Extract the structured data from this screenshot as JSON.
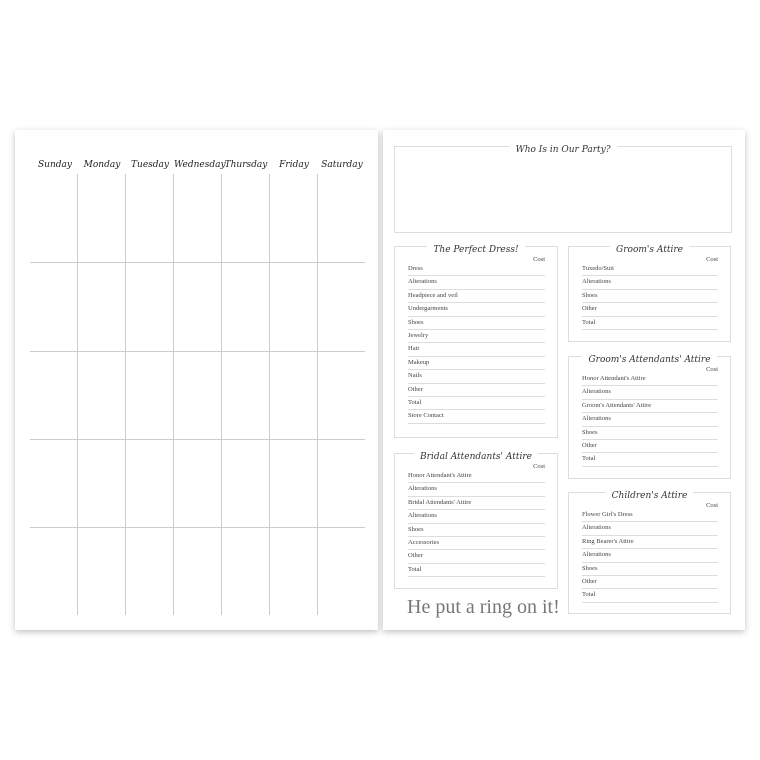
{
  "calendar": {
    "days": [
      "Sunday",
      "Monday",
      "Tuesday",
      "Wednesday",
      "Thursday",
      "Friday",
      "Saturday"
    ]
  },
  "party": {
    "title": "Who Is in Our Party?"
  },
  "sections": [
    {
      "id": "perfect-dress",
      "title": "The Perfect Dress!",
      "cost_label": "Cost",
      "items": [
        "Dress",
        "Alterations",
        "Headpiece and veil",
        "Undergarments",
        "Shoes",
        "Jewelry",
        "Hair",
        "Makeup",
        "Nails",
        "Other",
        "Total",
        "Store Contact"
      ]
    },
    {
      "id": "grooms-attire",
      "title": "Groom's Attire",
      "cost_label": "Cost",
      "items": [
        "Tuxedo/Suit",
        "Alterations",
        "Shoes",
        "Other",
        "Total"
      ]
    },
    {
      "id": "grooms-attendants-attire",
      "title": "Groom's Attendants' Attire",
      "cost_label": "Cost",
      "items": [
        "Honor Attendant's Attire",
        "Alterations",
        "Groom's Attendants' Attire",
        "Alterations",
        "Shoes",
        "Other",
        "Total"
      ]
    },
    {
      "id": "bridal-attendants-attire",
      "title": "Bridal Attendants' Attire",
      "cost_label": "Cost",
      "items": [
        "Honor Attendant's Attire",
        "Alterations",
        "Bridal Attendants' Attire",
        "Alterations",
        "Shoes",
        "Accessories",
        "Other",
        "Total"
      ]
    },
    {
      "id": "childrens-attire",
      "title": "Children's Attire",
      "cost_label": "Cost",
      "items": [
        "Flower Girl's Dress",
        "Alterations",
        "Ring Bearer's Attire",
        "Alterations",
        "Shoes",
        "Other",
        "Total"
      ]
    }
  ],
  "tagline": "He put a ring on it!"
}
